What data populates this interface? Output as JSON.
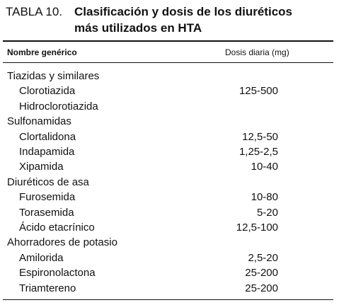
{
  "header": {
    "label": "TABLA 10.",
    "title_lines": [
      "Clasificación y dosis de los diuréticos",
      "más utilizados en HTA"
    ]
  },
  "table": {
    "columns": [
      "Nombre genérico",
      "Dosis diaria (mg)"
    ],
    "groups": [
      {
        "name": "Tiazidas y similares",
        "items": [
          {
            "name": "Clorotiazida",
            "dose": "125-500"
          },
          {
            "name": "Hidroclorotiazida"
          }
        ]
      },
      {
        "name": "Sulfonamidas",
        "items": [
          {
            "name": "Clortalidona",
            "dose": "12,5-50"
          },
          {
            "name": "Indapamida",
            "dose": "1,25-2,5"
          },
          {
            "name": "Xipamida",
            "dose": "10-40"
          }
        ]
      },
      {
        "name": "Diuréticos de asa",
        "items": [
          {
            "name": "Furosemida",
            "dose": "10-80"
          },
          {
            "name": "Torasemida",
            "dose": "5-20"
          },
          {
            "name": "Ácido etacrínico",
            "dose": "12,5-100"
          }
        ]
      },
      {
        "name": "Ahorradores de potasio",
        "items": [
          {
            "name": "Amilorida",
            "dose": "2,5-20"
          },
          {
            "name": "Espironolactona",
            "dose": "25-200"
          },
          {
            "name": "Triamtereno",
            "dose": "25-200"
          }
        ]
      }
    ]
  }
}
